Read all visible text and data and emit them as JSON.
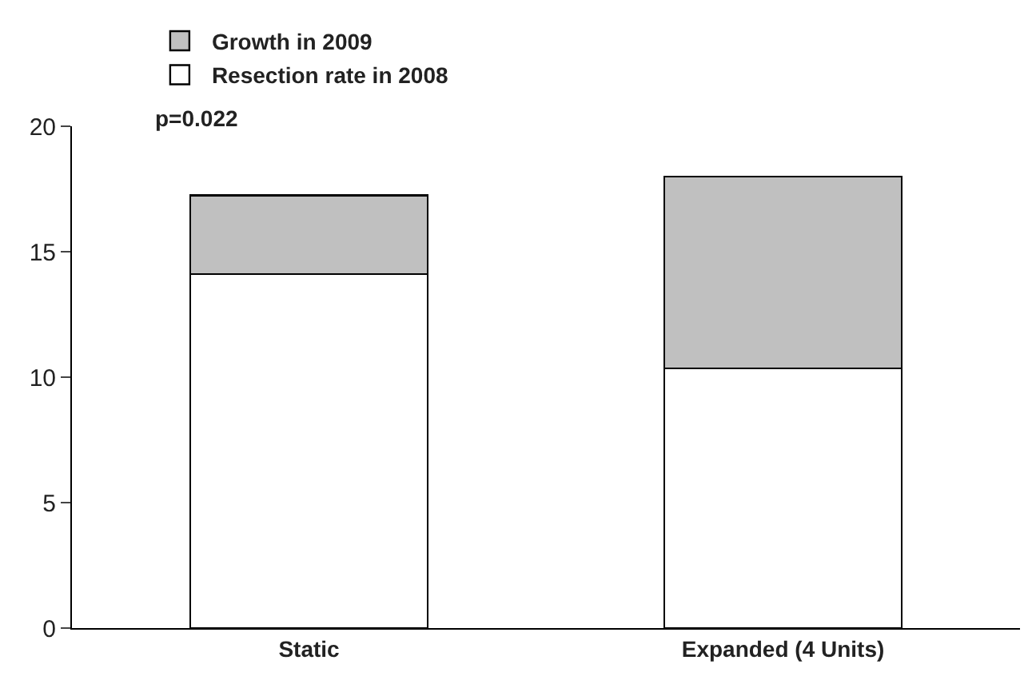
{
  "chart_data": {
    "type": "bar",
    "stacked": true,
    "categories": [
      "Static",
      "Expanded (4 Units)"
    ],
    "series": [
      {
        "name": "Resection rate in 2008",
        "color": "#ffffff",
        "values": [
          14.1,
          10.35
        ]
      },
      {
        "name": "Growth in 2009",
        "color": "#c0c0c0",
        "values": [
          3.15,
          7.65
        ]
      }
    ],
    "ylim": [
      0,
      20
    ],
    "yticks": [
      0,
      5,
      10,
      15,
      20
    ],
    "grid": false,
    "legend": "top left",
    "annotations": [
      "p=0.022"
    ]
  }
}
